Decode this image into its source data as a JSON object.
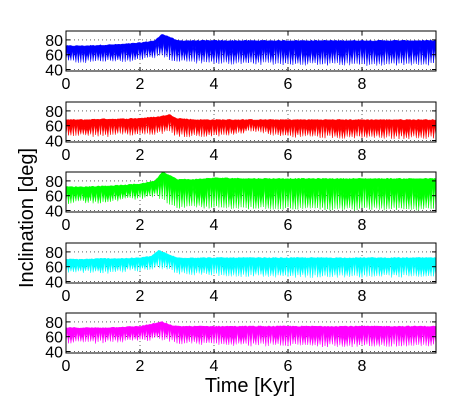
{
  "chart_data": {
    "type": "area",
    "xlabel": "Time [Kyr]",
    "ylabel": "Inclination [deg]",
    "xlim": [
      0,
      10
    ],
    "ylim": [
      38,
      92
    ],
    "x_ticks": [
      0,
      2,
      4,
      6,
      8
    ],
    "y_ticks": [
      40,
      60,
      80
    ],
    "grid": "dotted",
    "series": [
      {
        "color": "#0000ff",
        "x": [
          0,
          0.5,
          1.0,
          1.5,
          2.0,
          2.4,
          2.6,
          2.8,
          3.0,
          3.5,
          4,
          5,
          6,
          7,
          8,
          9,
          10
        ],
        "upper": [
          72,
          72,
          73,
          74,
          76,
          79,
          88,
          84,
          79,
          79,
          79,
          79,
          79,
          79,
          79,
          79,
          79
        ],
        "lower": [
          50,
          48,
          50,
          49,
          52,
          55,
          58,
          52,
          50,
          48,
          47,
          46,
          46,
          45,
          45,
          45,
          45
        ]
      },
      {
        "color": "#ff0000",
        "x": [
          0,
          0.5,
          1.0,
          1.5,
          2.0,
          2.5,
          2.8,
          3.0,
          3.5,
          4,
          5,
          6,
          7,
          8,
          9,
          10
        ],
        "upper": [
          68,
          68,
          69,
          69,
          70,
          72,
          75,
          70,
          68,
          68,
          68,
          68,
          68,
          68,
          68,
          68
        ],
        "lower": [
          44,
          45,
          44,
          46,
          47,
          48,
          50,
          45,
          44,
          44,
          50,
          44,
          43,
          42,
          42,
          42
        ]
      },
      {
        "color": "#00ff00",
        "x": [
          0,
          0.5,
          1.0,
          1.5,
          2.0,
          2.4,
          2.6,
          2.8,
          3.0,
          3.5,
          4,
          5,
          6,
          7,
          8,
          9,
          10
        ],
        "upper": [
          72,
          72,
          73,
          74,
          76,
          80,
          92,
          88,
          82,
          82,
          84,
          83,
          83,
          83,
          83,
          83,
          83
        ],
        "lower": [
          48,
          50,
          49,
          52,
          55,
          58,
          54,
          45,
          42,
          43,
          42,
          41,
          41,
          40,
          40,
          40,
          40
        ]
      },
      {
        "color": "#00ffff",
        "x": [
          0,
          0.5,
          1.0,
          1.5,
          2.0,
          2.3,
          2.5,
          2.8,
          3.0,
          3.5,
          4,
          5,
          6,
          7,
          8,
          9,
          10
        ],
        "upper": [
          70,
          70,
          71,
          71,
          72,
          74,
          82,
          76,
          72,
          72,
          72,
          72,
          72,
          72,
          72,
          72,
          72
        ],
        "lower": [
          50,
          51,
          50,
          52,
          54,
          56,
          58,
          54,
          50,
          48,
          47,
          46,
          45,
          45,
          45,
          45,
          45
        ]
      },
      {
        "color": "#ff00ff",
        "x": [
          0,
          0.5,
          1.0,
          1.5,
          2.0,
          2.4,
          2.6,
          2.8,
          3.0,
          3.5,
          4,
          5,
          6,
          7,
          8,
          9,
          10
        ],
        "upper": [
          72,
          72,
          72,
          73,
          74,
          78,
          80,
          76,
          74,
          74,
          74,
          74,
          74,
          74,
          74,
          74,
          74
        ],
        "lower": [
          50,
          50,
          51,
          52,
          53,
          55,
          55,
          53,
          50,
          49,
          48,
          47,
          47,
          46,
          46,
          46,
          46
        ]
      }
    ]
  }
}
